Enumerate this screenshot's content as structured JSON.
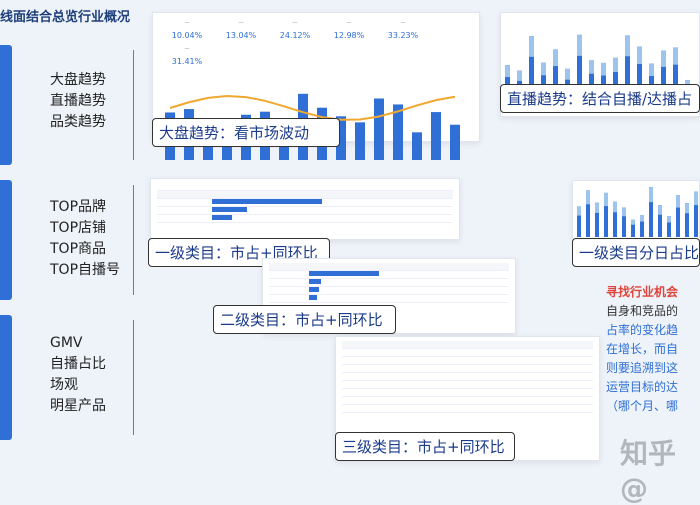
{
  "title": "线面结合总览行业概况",
  "groups": [
    {
      "items": [
        "大盘趋势",
        "直播趋势",
        "品类趋势"
      ]
    },
    {
      "items": [
        "TOP品牌",
        "TOP店铺",
        "TOP商品",
        "TOP自播号"
      ]
    },
    {
      "items": [
        "GMV",
        "自播占比",
        "场观",
        "明星产品"
      ]
    }
  ],
  "kpis": [
    "10.04%",
    "13.04%",
    "24.12%",
    "12.98%",
    "33.23%",
    "31.41%"
  ],
  "callouts": {
    "market": "大盘趋势：看市场波动",
    "live": "直播趋势：结合自播/达播占",
    "cat1": "一级类目：市占+同环比",
    "cat1_daily": "一级类目分日占比",
    "cat2": "二级类目：市占+同环比",
    "cat3": "三级类目：市占+同环比"
  },
  "side": {
    "heading": "寻找行业机会",
    "lines": [
      "自身和竞品的",
      "占率的变化趋",
      "在增长，而自",
      "则要追溯到这",
      "运营目标的达",
      "（哪个月、哪"
    ]
  },
  "watermark": "知乎 @",
  "colors": {
    "accent": "#2f6fd6",
    "highlight": "#e0443a",
    "line": "#f0a830"
  }
}
